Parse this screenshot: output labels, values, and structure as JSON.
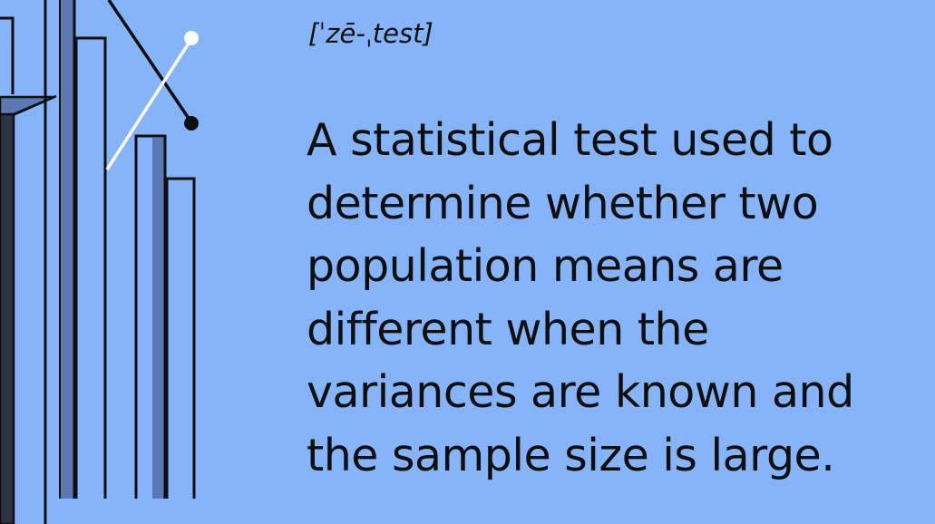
{
  "pronunciation": "[ˈzē-ˌtest]",
  "definition": "A statistical test used to\ndetermine whether two\npopulation means are\ndifferent when the\nvariances are known and\nthe sample size is large.",
  "colors": {
    "background": "#86b4fb",
    "ink": "#0e0e0e",
    "bar_shadow": "#5a78b4",
    "accent_white": "#ffffff"
  },
  "illustration": {
    "icon": "bar-chart-illustration"
  }
}
